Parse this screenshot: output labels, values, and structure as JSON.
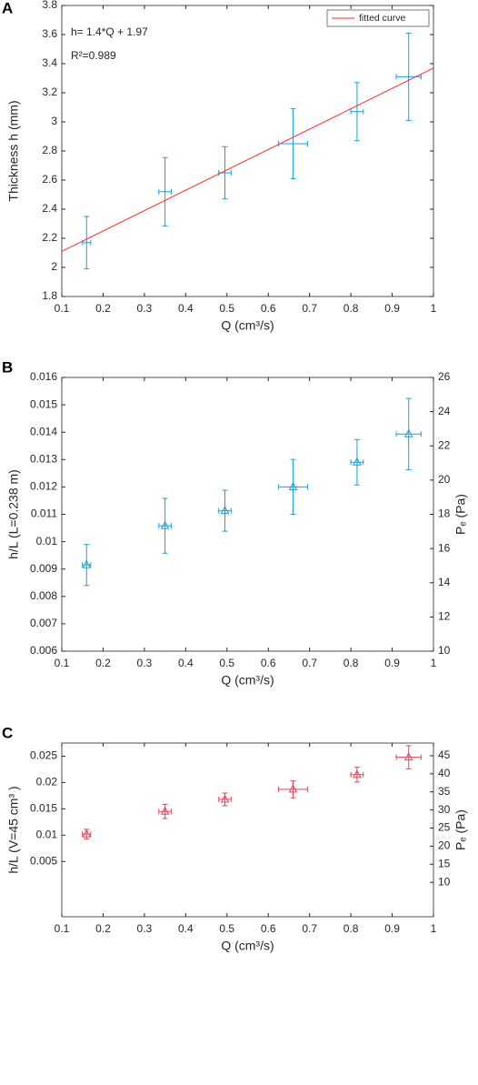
{
  "chart_data": [
    {
      "type": "scatter",
      "panel_label": "A",
      "xlabel": "Q (cm³/s)",
      "ylabel": "Thickness h (mm)",
      "annotations": [
        "h= 1.4*Q + 1.97",
        "R²=0.989"
      ],
      "xlim": [
        0.1,
        1
      ],
      "xticks": [
        0.1,
        0.2,
        0.3,
        0.4,
        0.5,
        0.6,
        0.7,
        0.8,
        0.9,
        1
      ],
      "ylim": [
        1.8,
        3.8
      ],
      "yticks": [
        1.8,
        2,
        2.2,
        2.4,
        2.6,
        2.8,
        3,
        3.2,
        3.4,
        3.6,
        3.8
      ],
      "legend": "upper right",
      "series": [
        {
          "color": "#1a9fd6",
          "x": [
            0.16,
            0.35,
            0.495,
            0.66,
            0.815,
            0.94
          ],
          "values": [
            2.17,
            2.52,
            2.65,
            2.85,
            3.07,
            3.31
          ],
          "yerr": [
            0.18,
            0.235,
            0.18,
            0.24,
            0.2,
            0.3
          ],
          "xerr": [
            0.01,
            0.015,
            0.015,
            0.035,
            0.015,
            0.03
          ]
        },
        {
          "name": "fitted curve",
          "color": "#ff2a2a",
          "x": [
            0.1,
            1
          ],
          "values": [
            2.11,
            3.37
          ]
        }
      ]
    },
    {
      "type": "scatter",
      "panel_label": "B",
      "xlabel": "Q (cm³/s)",
      "ylabel": "h/L  (L=0.238 m)",
      "y2label": "Pₑ (Pa)",
      "xlim": [
        0.1,
        1
      ],
      "xticks": [
        0.1,
        0.2,
        0.3,
        0.4,
        0.5,
        0.6,
        0.7,
        0.8,
        0.9,
        1
      ],
      "ylim": [
        0.006,
        0.016
      ],
      "yticks": [
        0.006,
        0.007,
        0.008,
        0.009,
        0.01,
        0.011,
        0.012,
        0.013,
        0.014,
        0.015,
        0.016
      ],
      "y2lim": [
        10,
        26
      ],
      "y2ticks": [
        10,
        12,
        14,
        16,
        18,
        20,
        22,
        24,
        26
      ],
      "series": [
        {
          "color": "#1a9fd6",
          "marker": "triangle",
          "x": [
            0.16,
            0.35,
            0.495,
            0.66,
            0.815,
            0.94
          ],
          "values": [
            0.00915,
            0.01058,
            0.01113,
            0.012,
            0.0129,
            0.01393
          ],
          "yerr": [
            0.00075,
            0.001,
            0.00075,
            0.001,
            0.00083,
            0.0013
          ],
          "xerr": [
            0.01,
            0.015,
            0.015,
            0.035,
            0.015,
            0.03
          ]
        }
      ]
    },
    {
      "type": "scatter",
      "panel_label": "C",
      "xlabel": "Q (cm³/s)",
      "ylabel": "h/L (V=45 cm³ )",
      "y2label": "Pₑ (Pa)",
      "xlim": [
        0.1,
        1
      ],
      "xticks": [
        0.1,
        0.2,
        0.3,
        0.4,
        0.5,
        0.6,
        0.7,
        0.8,
        0.9,
        1
      ],
      "ylim": [
        -0.0055,
        0.0275
      ],
      "yticks": [
        0.005,
        0.01,
        0.015,
        0.02,
        0.025
      ],
      "y2lim": [
        0.5,
        48.5
      ],
      "y2ticks": [
        10,
        15,
        20,
        25,
        30,
        35,
        40,
        45
      ],
      "series": [
        {
          "color": "#e0445a",
          "marker": "triangle",
          "x": [
            0.16,
            0.35,
            0.495,
            0.66,
            0.815,
            0.94
          ],
          "values": [
            0.0102,
            0.0145,
            0.0168,
            0.0187,
            0.0215,
            0.0248
          ],
          "yerr": [
            0.0009,
            0.00135,
            0.0012,
            0.0016,
            0.0014,
            0.0022
          ],
          "xerr": [
            0.01,
            0.015,
            0.015,
            0.035,
            0.015,
            0.03
          ]
        }
      ]
    }
  ]
}
